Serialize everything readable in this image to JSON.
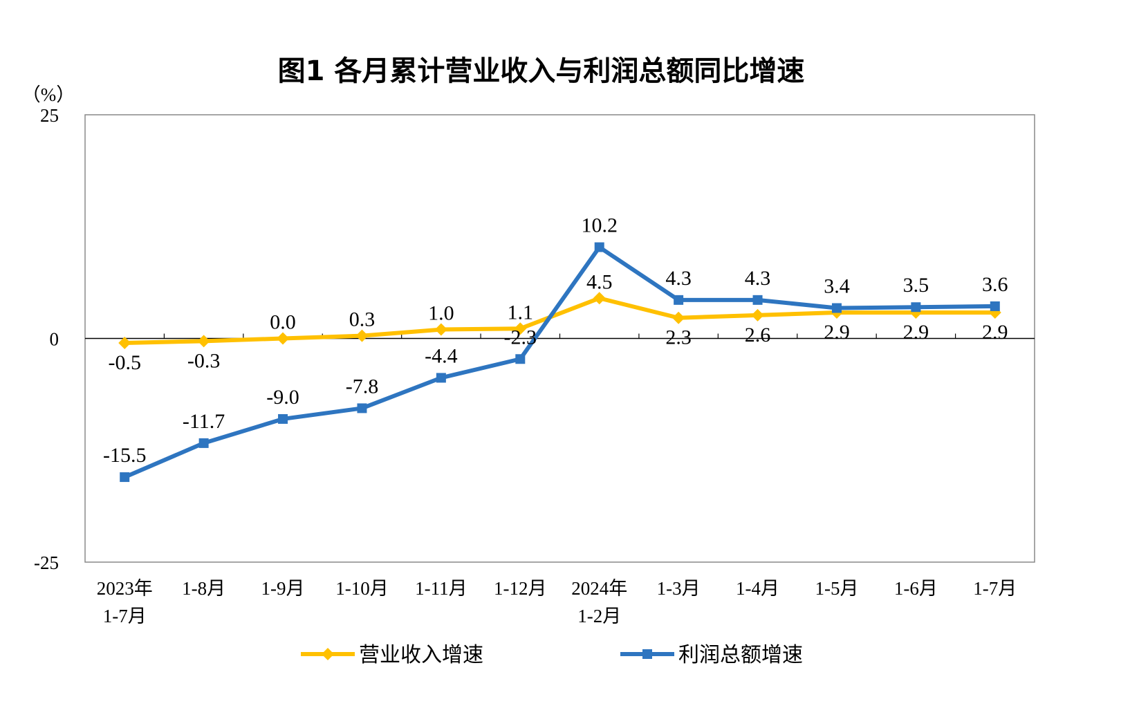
{
  "chart_data": {
    "type": "line",
    "title": "图1  各月累计营业收入与利润总额同比增速",
    "ylabel": "（%）",
    "ylim": [
      -25,
      25
    ],
    "yticks": [
      "25",
      "0",
      "-25"
    ],
    "categories": [
      [
        "2023年",
        "1-7月"
      ],
      [
        "1-8月"
      ],
      [
        "1-9月"
      ],
      [
        "1-10月"
      ],
      [
        "1-11月"
      ],
      [
        "1-12月"
      ],
      [
        "2024年",
        "1-2月"
      ],
      [
        "1-3月"
      ],
      [
        "1-4月"
      ],
      [
        "1-5月"
      ],
      [
        "1-6月"
      ],
      [
        "1-7月"
      ]
    ],
    "series": [
      {
        "name": "营业收入增速",
        "color": "#FFC000",
        "marker": "diamond",
        "values": [
          -0.5,
          -0.3,
          0.0,
          0.3,
          1.0,
          1.1,
          4.5,
          2.3,
          2.6,
          2.9,
          2.9,
          2.9
        ],
        "labels": [
          "-0.5",
          "-0.3",
          "0.0",
          "0.3",
          "1.0",
          "1.1",
          "4.5",
          "2.3",
          "2.6",
          "2.9",
          "2.9",
          "2.9"
        ]
      },
      {
        "name": "利润总额增速",
        "color": "#2E75C0",
        "marker": "square",
        "values": [
          -15.5,
          -11.7,
          -9.0,
          -7.8,
          -4.4,
          -2.3,
          10.2,
          4.3,
          4.3,
          3.4,
          3.5,
          3.6
        ],
        "labels": [
          "-15.5",
          "-11.7",
          "-9.0",
          "-7.8",
          "-4.4",
          "-2.3",
          "10.2",
          "4.3",
          "4.3",
          "3.4",
          "3.5",
          "3.6"
        ]
      }
    ],
    "legend": "bottom",
    "grid": false
  }
}
